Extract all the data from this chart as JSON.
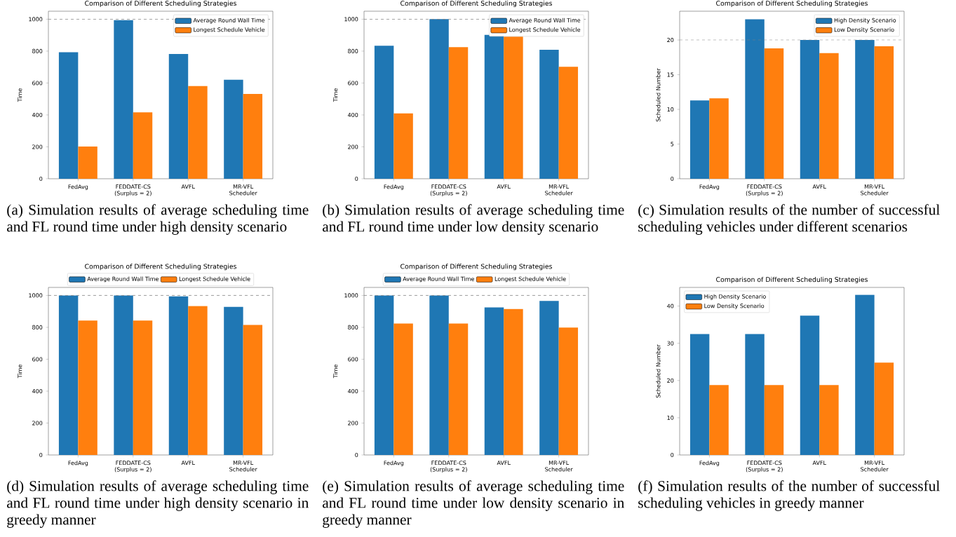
{
  "chart_data": [
    {
      "type": "bar",
      "title": "Comparison of Different Scheduling Strategies",
      "ylabel": "Time",
      "categories": [
        "FedAvg",
        "FEDDATE-CS (Surplus = 2)",
        "AVFL",
        "MR-VFL Scheduler"
      ],
      "series": [
        {
          "name": "Average Round Wall Time",
          "color": "#1f77b4",
          "values": [
            793,
            994,
            782,
            620
          ]
        },
        {
          "name": "Longest Schedule Vehicle",
          "color": "#ff7f0e",
          "values": [
            202,
            416,
            581,
            532
          ]
        }
      ],
      "ylim": [
        0,
        1050
      ],
      "yticks": [
        0,
        200,
        400,
        600,
        800,
        1000
      ],
      "legend": "top right",
      "ref_lines": [
        {
          "axis": "y",
          "value": 1000,
          "color": "#808080",
          "line_style": "dashed"
        }
      ],
      "annotations": [
        "(a) Simulation results of average scheduling time and FL round time under high density scenario"
      ]
    },
    {
      "type": "bar",
      "title": "Comparison of Different Scheduling Strategies",
      "ylabel": "Time",
      "categories": [
        "FedAvg",
        "FEDDATE-CS (Surplus = 2)",
        "AVFL",
        "MR-VFL Scheduler"
      ],
      "series": [
        {
          "name": "Average Round Wall Time",
          "color": "#1f77b4",
          "values": [
            834,
            1000,
            902,
            808
          ]
        },
        {
          "name": "Longest Schedule Vehicle",
          "color": "#ff7f0e",
          "values": [
            410,
            825,
            891,
            702
          ]
        }
      ],
      "ylim": [
        0,
        1050
      ],
      "yticks": [
        0,
        200,
        400,
        600,
        800,
        1000
      ],
      "legend": "top right",
      "ref_lines": [
        {
          "axis": "y",
          "value": 1000,
          "color": "#808080",
          "line_style": "dashed"
        }
      ],
      "annotations": [
        "(b) Simulation results of average scheduling time and FL round time under low density scenario"
      ]
    },
    {
      "type": "bar",
      "title": "Comparison of Different Scheduling Strategies",
      "ylabel": "Scheduled Number",
      "categories": [
        "FedAvg",
        "FEDDATE-CS (Surplus = 2)",
        "AVFL",
        "MR-VFL Scheduler"
      ],
      "series": [
        {
          "name": "High Density Scenario",
          "color": "#1f77b4",
          "values": [
            11.3,
            23.0,
            20.0,
            20.0
          ]
        },
        {
          "name": "Low Density Scenario",
          "color": "#ff7f0e",
          "values": [
            11.6,
            18.8,
            18.1,
            19.1
          ]
        }
      ],
      "ylim": [
        0,
        24.15
      ],
      "yticks": [
        0,
        5,
        10,
        15,
        20
      ],
      "legend": "top right",
      "ref_lines": [
        {
          "axis": "y",
          "value": 20,
          "color": "#808080",
          "line_style": "dashed"
        }
      ],
      "annotations": [
        "(c) Simulation results of the number of successful scheduling vehicles under different scenarios"
      ]
    },
    {
      "type": "bar",
      "title": "Comparison of Different Scheduling Strategies",
      "ylabel": "Time",
      "categories": [
        "FedAvg",
        "FEDDATE-CS (Surplus = 2)",
        "AVFL",
        "MR-VFL Scheduler"
      ],
      "series": [
        {
          "name": "Average Round Wall Time",
          "color": "#1f77b4",
          "values": [
            1000,
            1000,
            994,
            928
          ]
        },
        {
          "name": "Longest Schedule Vehicle",
          "color": "#ff7f0e",
          "values": [
            842,
            842,
            934,
            815
          ]
        }
      ],
      "ylim": [
        0,
        1050
      ],
      "yticks": [
        0,
        200,
        400,
        600,
        800,
        1000
      ],
      "legend": "top",
      "ref_lines": [
        {
          "axis": "y",
          "value": 1000,
          "color": "#808080",
          "line_style": "dashed"
        }
      ],
      "annotations": [
        "(d) Simulation results of average scheduling time and FL round time under high density scenario in greedy manner"
      ]
    },
    {
      "type": "bar",
      "title": "Comparison of Different Scheduling Strategies",
      "ylabel": "Time",
      "categories": [
        "FedAvg",
        "FEDDATE-CS (Surplus = 2)",
        "AVFL",
        "MR-VFL Scheduler"
      ],
      "series": [
        {
          "name": "Average Round Wall Time",
          "color": "#1f77b4",
          "values": [
            1000,
            1000,
            925,
            965
          ]
        },
        {
          "name": "Longest Schedule Vehicle",
          "color": "#ff7f0e",
          "values": [
            824,
            824,
            915,
            798
          ]
        }
      ],
      "ylim": [
        0,
        1050
      ],
      "yticks": [
        0,
        200,
        400,
        600,
        800,
        1000
      ],
      "legend": "top",
      "ref_lines": [
        {
          "axis": "y",
          "value": 1000,
          "color": "#808080",
          "line_style": "dashed"
        }
      ],
      "annotations": [
        "(e) Simulation results of average scheduling time and FL round time under low density scenario in greedy manner"
      ]
    },
    {
      "type": "bar",
      "title": "Comparison of Different Scheduling Strategies",
      "ylabel": "Scheduled Number",
      "categories": [
        "FedAvg",
        "FEDDATE-CS (Surplus = 2)",
        "AVFL",
        "MR-VFL Scheduler"
      ],
      "series": [
        {
          "name": "High Density Scenario",
          "color": "#1f77b4",
          "values": [
            32.5,
            32.5,
            37.4,
            43.0
          ]
        },
        {
          "name": "Low Density Scenario",
          "color": "#ff7f0e",
          "values": [
            18.8,
            18.8,
            18.8,
            24.8
          ]
        }
      ],
      "ylim": [
        0,
        45
      ],
      "yticks": [
        0,
        10,
        20,
        30,
        40
      ],
      "legend": "top left",
      "annotations": [
        "(f) Simulation results of the number of successful scheduling vehicles in greedy manner"
      ]
    }
  ]
}
